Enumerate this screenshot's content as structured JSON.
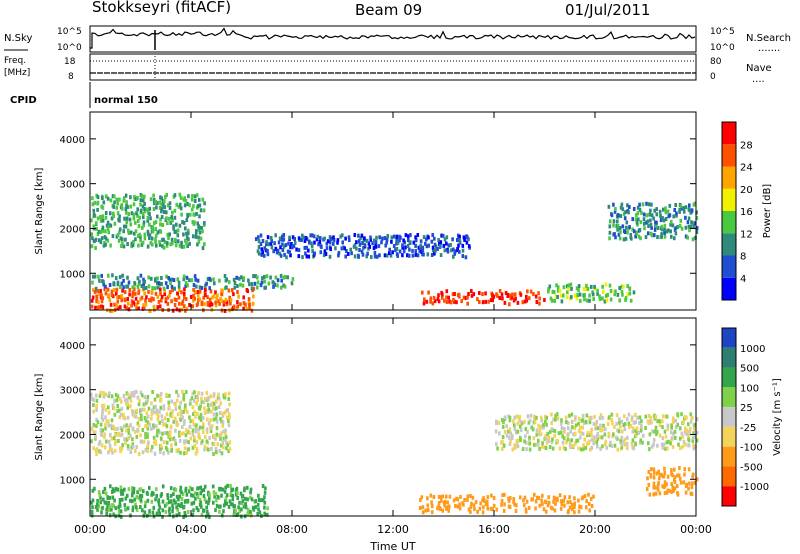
{
  "header": {
    "station": "Stokkseyri (fitACF)",
    "beam": "Beam 09",
    "date": "01/Jul/2011"
  },
  "status_panels": {
    "nsky": {
      "label": "N.Sky",
      "left_ticks": [
        "10^5",
        "10^0"
      ],
      "right_ticks": [
        "10^5",
        "10^0"
      ],
      "right_label": "N.Search",
      "right_legend": "......."
    },
    "freq": {
      "label_line1": "Freq.",
      "label_line2": "[MHz]",
      "left_ticks": [
        "18",
        "8"
      ],
      "right_ticks": [
        "80",
        "0"
      ],
      "right_label": "Nave",
      "right_legend": "...."
    },
    "cpid": {
      "label": "CPID",
      "program": "normal 150"
    }
  },
  "chart_data": [
    {
      "type": "heatmap",
      "title": "",
      "ylabel": "Slant Range [km]",
      "xlabel": "",
      "x_range_hours": [
        0,
        24
      ],
      "ylim": [
        180,
        4600
      ],
      "yticks": [
        "1000",
        "2000",
        "3000",
        "4000"
      ],
      "colorbar": {
        "label": "Power [dB]",
        "tick_labels": [
          "4",
          "8",
          "12",
          "16",
          "20",
          "24",
          "28"
        ],
        "colors": [
          "#0000ff",
          "#1f4fd0",
          "#2e8a7a",
          "#49c840",
          "#f0f000",
          "#ffa500",
          "#ff5000",
          "#ff0000"
        ]
      },
      "features": [
        {
          "range_km": [
            200,
            700
          ],
          "time_h": [
            0.0,
            6.5
          ],
          "power_db": 26
        },
        {
          "range_km": [
            700,
            1000
          ],
          "time_h": [
            0.0,
            8.0
          ],
          "power_db": 10
        },
        {
          "range_km": [
            1600,
            2800
          ],
          "time_h": [
            0.0,
            4.5
          ],
          "power_db": 12
        },
        {
          "range_km": [
            1400,
            1900
          ],
          "time_h": [
            6.5,
            15.0
          ],
          "power_db": 6
        },
        {
          "range_km": [
            350,
            650
          ],
          "time_h": [
            13.0,
            18.0
          ],
          "power_db": 28
        },
        {
          "range_km": [
            400,
            800
          ],
          "time_h": [
            18.0,
            21.5
          ],
          "power_db": 14
        },
        {
          "range_km": [
            1800,
            2600
          ],
          "time_h": [
            20.5,
            24.0
          ],
          "power_db": 10
        }
      ]
    },
    {
      "type": "heatmap",
      "title": "",
      "ylabel": "Slant Range [km]",
      "xlabel": "Time UT",
      "x_range_hours": [
        0,
        24
      ],
      "ylim": [
        180,
        4600
      ],
      "yticks": [
        "1000",
        "2000",
        "3000",
        "4000"
      ],
      "xticks": [
        "00:00",
        "04:00",
        "08:00",
        "12:00",
        "16:00",
        "20:00",
        "00:00"
      ],
      "colorbar": {
        "label": "Velocity [m s⁻¹]",
        "tick_labels": [
          "1000",
          "500",
          "100",
          "25",
          "-25",
          "-100",
          "-500",
          "-1000"
        ],
        "colors": [
          "#1d45c4",
          "#2e7f70",
          "#33a64c",
          "#7fd04a",
          "#c8c8c8",
          "#f3d35a",
          "#ff9a1a",
          "#ff6a00",
          "#ff0000"
        ]
      },
      "features": [
        {
          "range_km": [
            200,
            900
          ],
          "time_h": [
            0.0,
            7.0
          ],
          "velocity_ms": 150
        },
        {
          "range_km": [
            1600,
            3000
          ],
          "time_h": [
            0.0,
            5.5
          ],
          "velocity_ms": 0
        },
        {
          "range_km": [
            300,
            700
          ],
          "time_h": [
            13.0,
            20.0
          ],
          "velocity_ms": -250
        },
        {
          "range_km": [
            700,
            1300
          ],
          "time_h": [
            22.0,
            24.0
          ],
          "velocity_ms": -300
        },
        {
          "range_km": [
            1700,
            2500
          ],
          "time_h": [
            16.0,
            24.0
          ],
          "velocity_ms": 0
        }
      ]
    }
  ]
}
